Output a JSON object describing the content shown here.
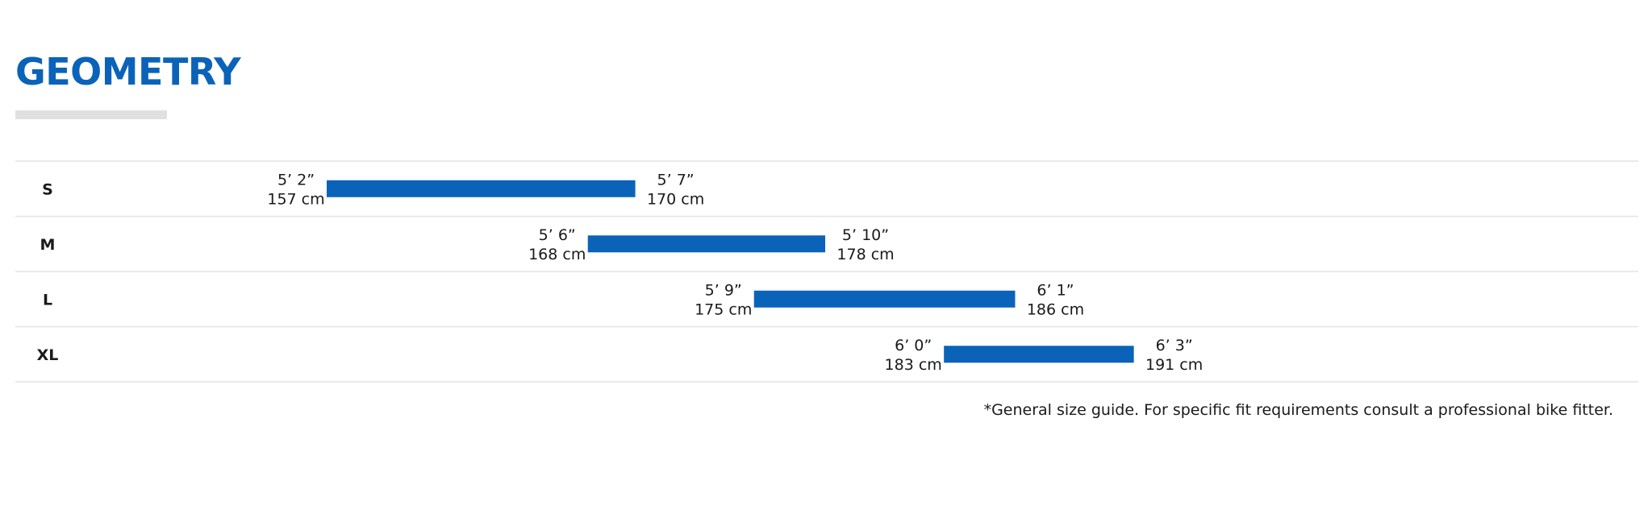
{
  "header": {
    "title": "GEOMETRY"
  },
  "colors": {
    "accent": "#0a63b9",
    "row_border": "#e3e3e3",
    "underline": "#e0e0e0"
  },
  "chart_data": {
    "type": "range-bar",
    "title": "GEOMETRY",
    "unit": "cm",
    "rows": [
      {
        "size": "S",
        "min_cm": 157,
        "max_cm": 170,
        "min_imperial": "5’ 2”",
        "max_imperial": "5’ 7”",
        "min_metric": "157 cm",
        "max_metric": "170 cm"
      },
      {
        "size": "M",
        "min_cm": 168,
        "max_cm": 178,
        "min_imperial": "5’ 6”",
        "max_imperial": "5’ 10”",
        "min_metric": "168 cm",
        "max_metric": "178 cm"
      },
      {
        "size": "L",
        "min_cm": 175,
        "max_cm": 186,
        "min_imperial": "5’ 9”",
        "max_imperial": "6’ 1”",
        "min_metric": "175 cm",
        "max_metric": "186 cm"
      },
      {
        "size": "XL",
        "min_cm": 183,
        "max_cm": 191,
        "min_imperial": "6’ 0”",
        "max_imperial": "6’ 3”",
        "min_metric": "183 cm",
        "max_metric": "191 cm"
      }
    ]
  },
  "footnote": "*General size guide. For specific fit requirements consult a professional bike fitter."
}
